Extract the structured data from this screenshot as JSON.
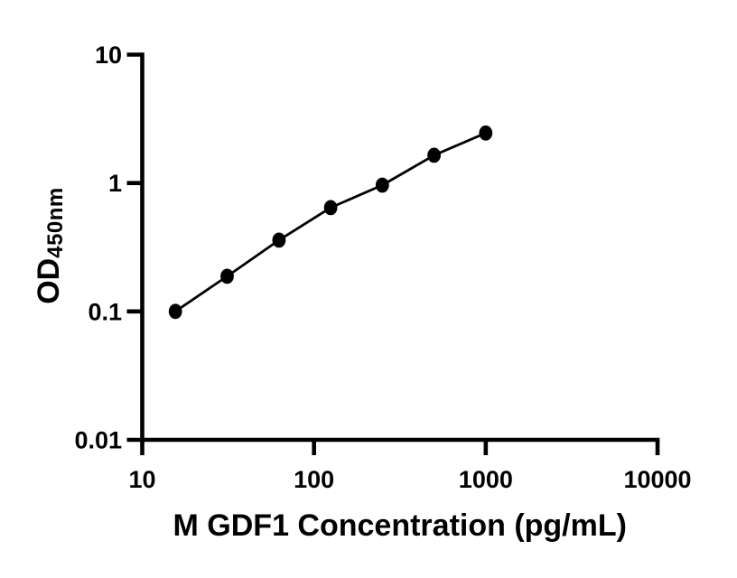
{
  "figure": {
    "background_color": "#ffffff",
    "foreground_color": "#000000"
  },
  "chart_data": {
    "type": "scatter",
    "title": "",
    "xlabel": "M GDF1 Concentration (pg/mL)",
    "ylabel_main": "OD",
    "ylabel_subscript": "450nm",
    "x_scale": "log",
    "y_scale": "log",
    "xlim": [
      10,
      10000
    ],
    "ylim": [
      0.01,
      10
    ],
    "grid": false,
    "legend": false,
    "x_ticks": [
      {
        "value": 10,
        "label": "10"
      },
      {
        "value": 100,
        "label": "100"
      },
      {
        "value": 1000,
        "label": "1000"
      },
      {
        "value": 10000,
        "label": "10000"
      }
    ],
    "y_ticks": [
      {
        "value": 10,
        "label": "10"
      },
      {
        "value": 1,
        "label": "1"
      },
      {
        "value": 0.1,
        "label": "0.1"
      },
      {
        "value": 0.01,
        "label": "0.01"
      }
    ],
    "series": [
      {
        "marker": "filled-circle",
        "line": "straight-segments",
        "points": [
          {
            "x": 15.6,
            "y": 0.1
          },
          {
            "x": 31.2,
            "y": 0.188
          },
          {
            "x": 62.5,
            "y": 0.359
          },
          {
            "x": 125,
            "y": 0.643
          },
          {
            "x": 250,
            "y": 0.963
          },
          {
            "x": 500,
            "y": 1.645
          },
          {
            "x": 1000,
            "y": 2.45
          }
        ]
      }
    ]
  }
}
